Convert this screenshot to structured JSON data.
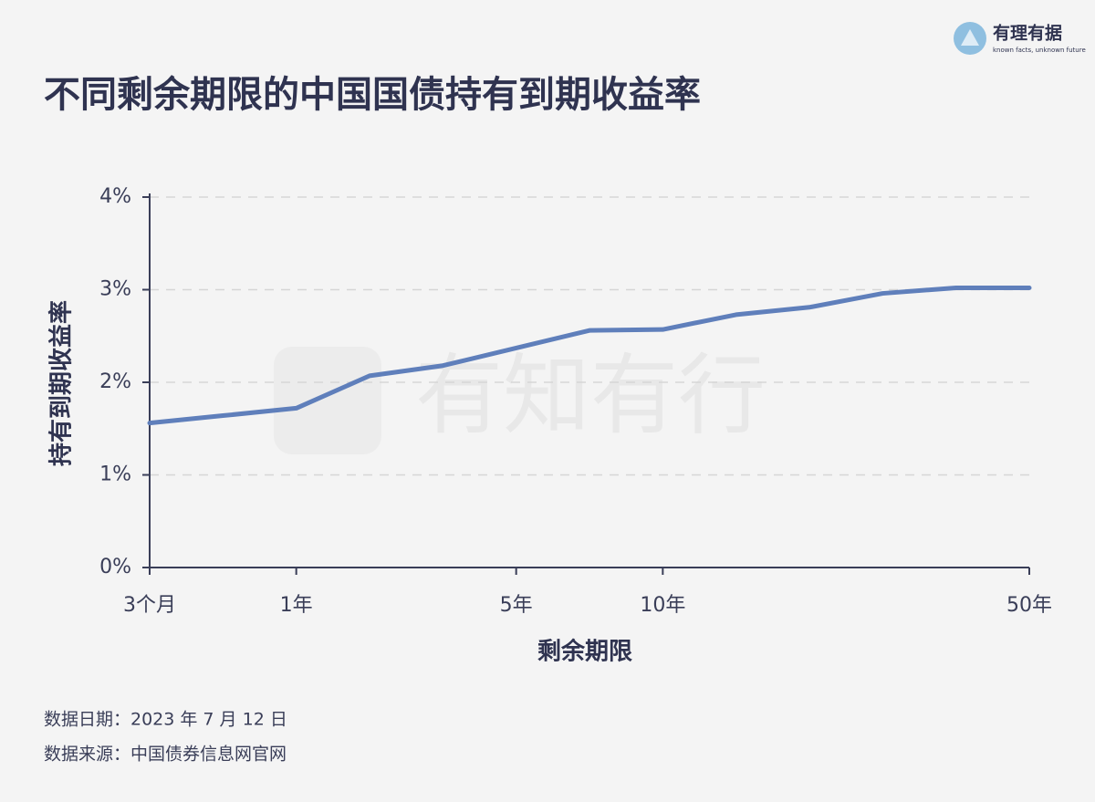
{
  "brand": {
    "name": "有理有据",
    "slogan": "known facts, unknown future"
  },
  "watermark": "有知有行",
  "chart_data": {
    "type": "line",
    "title": "不同剩余期限的中国国债持有到期收益率",
    "x_label": "剩余期限",
    "y_label": "持有到期收益率",
    "categories": [
      "3个月",
      null,
      "1年",
      null,
      null,
      "5年",
      null,
      "10年",
      null,
      null,
      null,
      null,
      "50年"
    ],
    "values": [
      1.56,
      1.64,
      1.72,
      2.07,
      2.18,
      2.37,
      2.56,
      2.57,
      2.73,
      2.81,
      2.96,
      3.02,
      3.02
    ],
    "color": "#5f7fbb",
    "ylim": [
      0,
      4
    ],
    "yticks": [
      {
        "value": 0,
        "label": "0%"
      },
      {
        "value": 1,
        "label": "1%"
      },
      {
        "value": 2,
        "label": "2%"
      },
      {
        "value": 3,
        "label": "3%"
      },
      {
        "value": 4,
        "label": "4%"
      }
    ],
    "grid": true
  },
  "notes": [
    "数据日期：2023 年 7 月 12 日",
    "数据来源：中国债券信息网官网"
  ]
}
